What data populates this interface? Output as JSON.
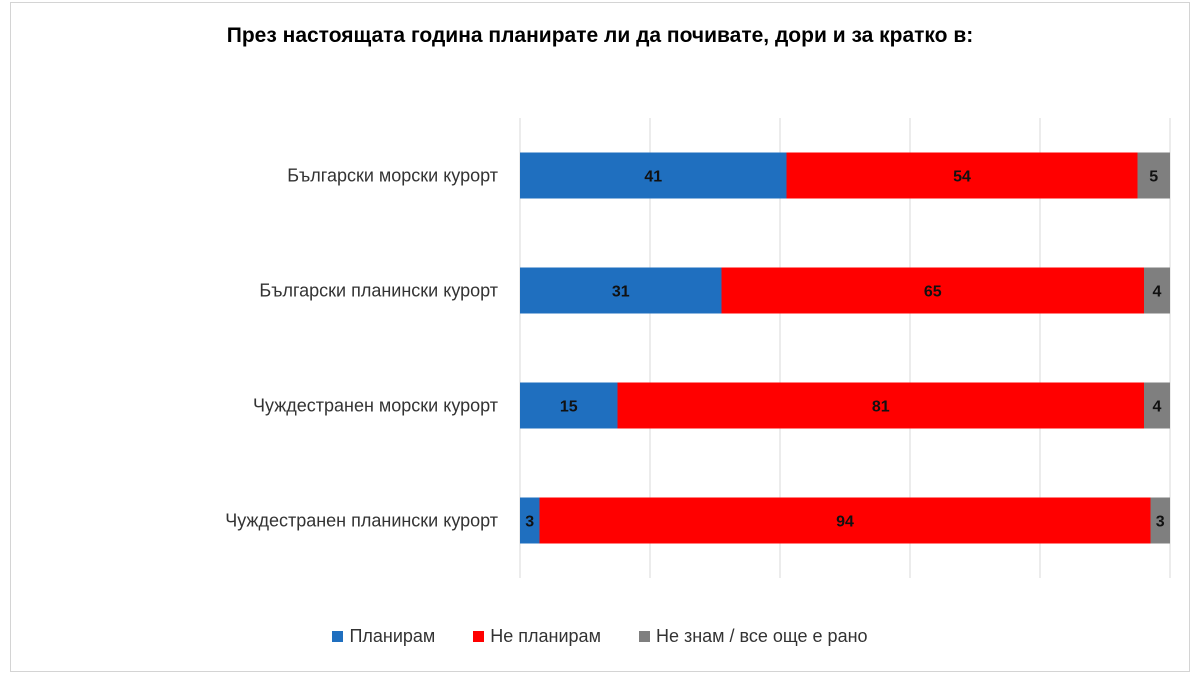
{
  "chart_data": {
    "type": "bar",
    "orientation": "horizontal",
    "stacked": true,
    "title": "През настоящата година планирате ли да почивате, дори и за кратко в:",
    "categories": [
      "Български морски курорт",
      "Български планински курорт",
      "Чуждестранен морски курорт",
      "Чуждестранен планински курорт"
    ],
    "series": [
      {
        "name": "Планирам",
        "color": "#1f6fbf",
        "values": [
          41,
          31,
          15,
          3
        ]
      },
      {
        "name": "Не планирам",
        "color": "#ff0000",
        "values": [
          54,
          65,
          81,
          94
        ]
      },
      {
        "name": "Не знам / все още е рано",
        "color": "#7f7f7f",
        "values": [
          5,
          4,
          4,
          3
        ]
      }
    ],
    "xlim": [
      0,
      100
    ],
    "grid": true,
    "legend_position": "bottom",
    "data_labels": true
  }
}
